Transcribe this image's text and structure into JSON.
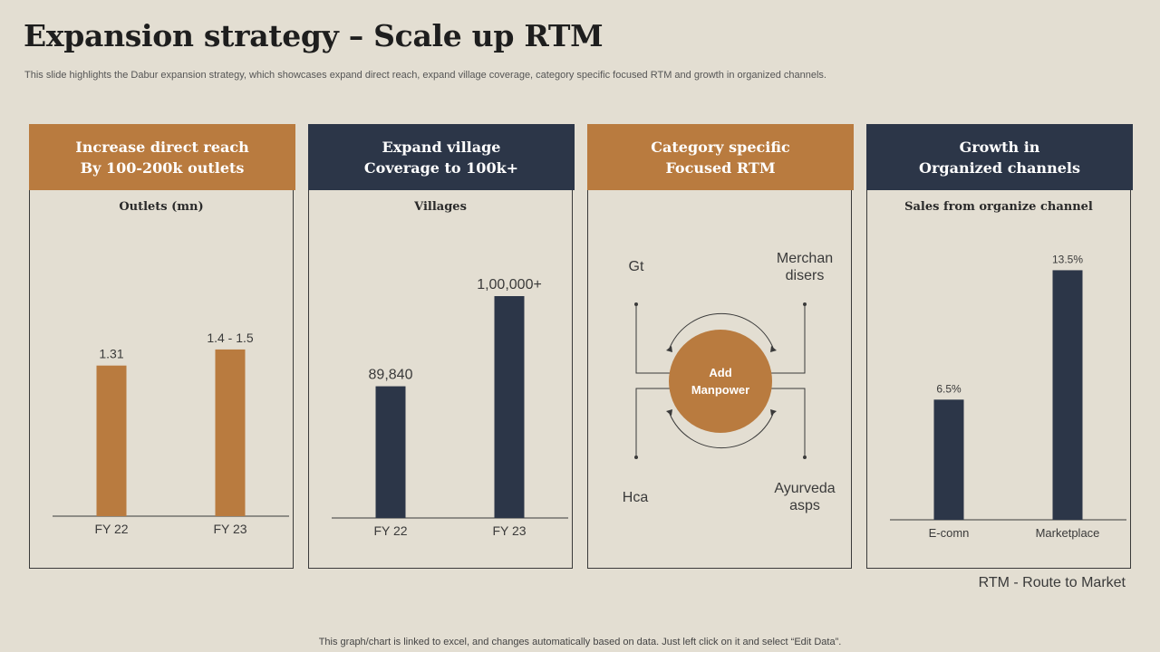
{
  "title": "Expansion strategy – Scale up RTM",
  "subtitle": "This slide highlights the Dabur expansion strategy, which showcases expand direct reach, expand village coverage, category specific focused RTM and growth in organized channels.",
  "colors": {
    "orange": "#b97b3f",
    "navy": "#2c3648",
    "background": "#e3ded2"
  },
  "cards": [
    {
      "head_line1": "Increase direct reach",
      "head_line2": "By 100-200k outlets",
      "sub": "Outlets (mn)"
    },
    {
      "head_line1": "Expand village",
      "head_line2": "Coverage to 100k+",
      "sub": "Villages"
    },
    {
      "head_line1": "Category specific",
      "head_line2": "Focused RTM"
    },
    {
      "head_line1": "Growth in",
      "head_line2": "Organized channels",
      "sub": "Sales from organize channel"
    }
  ],
  "diagram": {
    "center_line1": "Add",
    "center_line2": "Manpower",
    "top_left": "Gt",
    "top_right_line1": "Merchan",
    "top_right_line2": "disers",
    "bottom_left": "Hca",
    "bottom_right_line1": "Ayurveda",
    "bottom_right_line2": "asps"
  },
  "chart_data": [
    {
      "type": "bar",
      "categories": [
        "FY 22",
        "FY 23"
      ],
      "values": [
        1.31,
        1.45
      ],
      "data_labels": [
        "1.31",
        "1.4 - 1.5"
      ],
      "ylim": [
        0,
        2.3
      ],
      "color": "#b97b3f"
    },
    {
      "type": "bar",
      "categories": [
        "FY 22",
        "FY 23"
      ],
      "values": [
        89840,
        100000
      ],
      "data_labels": [
        "89,840",
        "1,00,000+"
      ],
      "ylim": [
        0,
        105000
      ],
      "ybase": 75000,
      "color": "#2c3648"
    },
    {
      "type": "bar",
      "categories": [
        "E-comn",
        "Marketplace"
      ],
      "values": [
        6.5,
        13.5
      ],
      "data_labels": [
        "6.5%",
        "13.5%"
      ],
      "ylim": [
        0,
        14.5
      ],
      "color": "#2c3648"
    }
  ],
  "footer_note": "RTM - Route to Market",
  "disclaimer": "This graph/chart is linked to excel,  and changes automatically based on data. Just left click on it and select “Edit Data”."
}
